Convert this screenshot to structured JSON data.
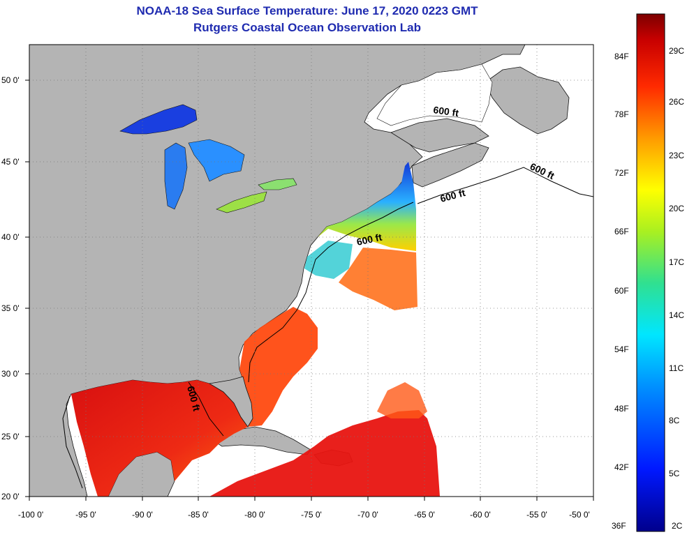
{
  "title_line1": "NOAA-18 Sea Surface Temperature:  June 17, 2020 0223 GMT",
  "title_line2": "Rutgers Coastal Ocean Observation Lab",
  "latitude_labels": [
    "50 0'",
    "45 0'",
    "40 0'",
    "35 0'",
    "30 0'",
    "25 0'",
    "20 0'"
  ],
  "longitude_labels": [
    "-100 0'",
    "-95 0'",
    "-90 0'",
    "-85 0'",
    "-80 0'",
    "-75 0'",
    "-70 0'",
    "-65 0'",
    "-60 0'",
    "-55 0'",
    "-50 0'"
  ],
  "depth_labels": [
    "600 ft",
    "600 ft",
    "600 ft",
    "600 ft",
    "600 ft"
  ],
  "colorbar": {
    "fahrenheit": [
      "84F",
      "78F",
      "72F",
      "66F",
      "60F",
      "54F",
      "48F",
      "42F",
      "36F"
    ],
    "celsius": [
      "29C",
      "26C",
      "23C",
      "20C",
      "17C",
      "14C",
      "11C",
      "8C",
      "5C",
      "2C"
    ]
  },
  "colors": {
    "land": "#b4b4b4",
    "title": "#1f2bb0",
    "cold": "#00008c",
    "hot": "#7d0000"
  }
}
